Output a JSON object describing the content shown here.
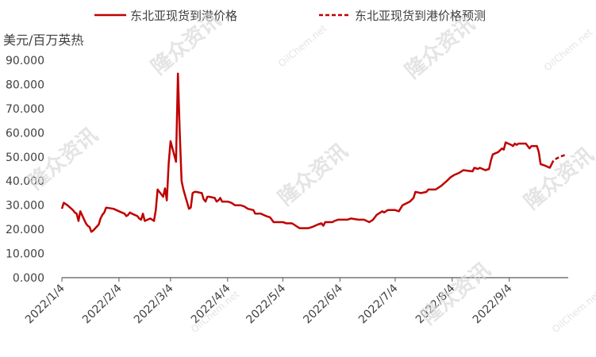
{
  "chart_data": {
    "type": "line",
    "unit_label": "美元/百万英热",
    "ylim": [
      0,
      90
    ],
    "y_ticks": [
      "0.000",
      "10.000",
      "20.000",
      "30.000",
      "40.000",
      "50.000",
      "60.000",
      "70.000",
      "80.000",
      "90.000"
    ],
    "x_tick_labels": [
      "2022/1/4",
      "2022/2/4",
      "2022/3/4",
      "2022/4/4",
      "2022/5/4",
      "2022/6/4",
      "2022/7/4",
      "2022/8/4",
      "2022/9/4"
    ],
    "x_tick_dates": [
      "2022-01-04",
      "2022-02-04",
      "2022-03-04",
      "2022-04-04",
      "2022-05-04",
      "2022-06-04",
      "2022-07-04",
      "2022-08-04",
      "2022-09-04"
    ],
    "x_range": [
      "2022-01-04",
      "2022-10-06"
    ],
    "legend_position": "top",
    "series": [
      {
        "name": "东北亚现货到港价格",
        "style": "solid",
        "color": "#C00000",
        "points": [
          [
            "2022-01-04",
            28.5
          ],
          [
            "2022-01-05",
            31.0
          ],
          [
            "2022-01-06",
            30.5
          ],
          [
            "2022-01-07",
            30.0
          ],
          [
            "2022-01-10",
            28.0
          ],
          [
            "2022-01-11",
            27.0
          ],
          [
            "2022-01-12",
            26.5
          ],
          [
            "2022-01-13",
            23.5
          ],
          [
            "2022-01-14",
            27.5
          ],
          [
            "2022-01-17",
            22.5
          ],
          [
            "2022-01-18",
            21.5
          ],
          [
            "2022-01-19",
            21.0
          ],
          [
            "2022-01-20",
            19.0
          ],
          [
            "2022-01-21",
            19.5
          ],
          [
            "2022-01-24",
            22.0
          ],
          [
            "2022-01-25",
            24.5
          ],
          [
            "2022-01-26",
            26.0
          ],
          [
            "2022-01-27",
            27.0
          ],
          [
            "2022-01-28",
            29.0
          ],
          [
            "2022-02-01",
            28.5
          ],
          [
            "2022-02-04",
            27.5
          ],
          [
            "2022-02-07",
            26.5
          ],
          [
            "2022-02-08",
            25.5
          ],
          [
            "2022-02-09",
            26.0
          ],
          [
            "2022-02-10",
            27.0
          ],
          [
            "2022-02-11",
            26.5
          ],
          [
            "2022-02-14",
            25.5
          ],
          [
            "2022-02-15",
            24.5
          ],
          [
            "2022-02-16",
            24.0
          ],
          [
            "2022-02-17",
            26.5
          ],
          [
            "2022-02-18",
            23.5
          ],
          [
            "2022-02-21",
            24.5
          ],
          [
            "2022-02-22",
            24.0
          ],
          [
            "2022-02-23",
            23.5
          ],
          [
            "2022-02-24",
            28.0
          ],
          [
            "2022-02-25",
            36.5
          ],
          [
            "2022-02-28",
            33.5
          ],
          [
            "2022-03-01",
            37.0
          ],
          [
            "2022-03-02",
            32.0
          ],
          [
            "2022-03-03",
            47.5
          ],
          [
            "2022-03-04",
            56.5
          ],
          [
            "2022-03-07",
            48.0
          ],
          [
            "2022-03-08",
            84.5
          ],
          [
            "2022-03-09",
            60.0
          ],
          [
            "2022-03-10",
            40.0
          ],
          [
            "2022-03-11",
            36.5
          ],
          [
            "2022-03-14",
            28.5
          ],
          [
            "2022-03-15",
            29.0
          ],
          [
            "2022-03-16",
            35.0
          ],
          [
            "2022-03-17",
            35.5
          ],
          [
            "2022-03-18",
            35.5
          ],
          [
            "2022-03-21",
            35.0
          ],
          [
            "2022-03-22",
            32.5
          ],
          [
            "2022-03-23",
            31.5
          ],
          [
            "2022-03-24",
            33.5
          ],
          [
            "2022-03-25",
            33.5
          ],
          [
            "2022-03-28",
            33.0
          ],
          [
            "2022-03-29",
            31.5
          ],
          [
            "2022-03-30",
            32.0
          ],
          [
            "2022-03-31",
            33.0
          ],
          [
            "2022-04-01",
            31.5
          ],
          [
            "2022-04-04",
            31.5
          ],
          [
            "2022-04-06",
            31.0
          ],
          [
            "2022-04-08",
            30.0
          ],
          [
            "2022-04-11",
            30.0
          ],
          [
            "2022-04-13",
            29.5
          ],
          [
            "2022-04-15",
            28.5
          ],
          [
            "2022-04-18",
            28.0
          ],
          [
            "2022-04-19",
            26.5
          ],
          [
            "2022-04-22",
            26.5
          ],
          [
            "2022-04-25",
            25.5
          ],
          [
            "2022-04-27",
            25.0
          ],
          [
            "2022-04-29",
            23.0
          ],
          [
            "2022-05-04",
            23.0
          ],
          [
            "2022-05-06",
            22.5
          ],
          [
            "2022-05-09",
            22.5
          ],
          [
            "2022-05-11",
            21.5
          ],
          [
            "2022-05-13",
            20.5
          ],
          [
            "2022-05-18",
            20.5
          ],
          [
            "2022-05-20",
            21.0
          ],
          [
            "2022-05-23",
            22.0
          ],
          [
            "2022-05-25",
            22.5
          ],
          [
            "2022-05-26",
            21.5
          ],
          [
            "2022-05-27",
            23.0
          ],
          [
            "2022-05-31",
            23.0
          ],
          [
            "2022-06-01",
            23.5
          ],
          [
            "2022-06-03",
            24.0
          ],
          [
            "2022-06-08",
            24.0
          ],
          [
            "2022-06-10",
            24.5
          ],
          [
            "2022-06-14",
            24.0
          ],
          [
            "2022-06-17",
            24.0
          ],
          [
            "2022-06-20",
            23.0
          ],
          [
            "2022-06-22",
            24.0
          ],
          [
            "2022-06-24",
            26.0
          ],
          [
            "2022-06-27",
            27.5
          ],
          [
            "2022-06-28",
            27.0
          ],
          [
            "2022-06-30",
            28.0
          ],
          [
            "2022-07-04",
            28.0
          ],
          [
            "2022-07-06",
            27.5
          ],
          [
            "2022-07-08",
            30.0
          ],
          [
            "2022-07-12",
            31.5
          ],
          [
            "2022-07-14",
            33.0
          ],
          [
            "2022-07-15",
            35.5
          ],
          [
            "2022-07-18",
            35.0
          ],
          [
            "2022-07-21",
            35.5
          ],
          [
            "2022-07-22",
            36.5
          ],
          [
            "2022-07-26",
            36.5
          ],
          [
            "2022-07-28",
            37.5
          ],
          [
            "2022-07-29",
            38.0
          ],
          [
            "2022-08-01",
            40.0
          ],
          [
            "2022-08-03",
            41.5
          ],
          [
            "2022-08-05",
            42.5
          ],
          [
            "2022-08-08",
            43.5
          ],
          [
            "2022-08-10",
            44.5
          ],
          [
            "2022-08-15",
            44.0
          ],
          [
            "2022-08-16",
            45.5
          ],
          [
            "2022-08-18",
            45.0
          ],
          [
            "2022-08-19",
            45.5
          ],
          [
            "2022-08-22",
            44.5
          ],
          [
            "2022-08-24",
            45.0
          ],
          [
            "2022-08-25",
            48.5
          ],
          [
            "2022-08-26",
            51.0
          ],
          [
            "2022-08-29",
            52.0
          ],
          [
            "2022-08-31",
            53.5
          ],
          [
            "2022-09-01",
            53.0
          ],
          [
            "2022-09-02",
            56.0
          ],
          [
            "2022-09-05",
            55.0
          ],
          [
            "2022-09-06",
            54.5
          ],
          [
            "2022-09-07",
            55.5
          ],
          [
            "2022-09-08",
            55.0
          ],
          [
            "2022-09-09",
            55.5
          ],
          [
            "2022-09-13",
            55.5
          ],
          [
            "2022-09-15",
            53.5
          ],
          [
            "2022-09-16",
            54.5
          ],
          [
            "2022-09-19",
            54.5
          ],
          [
            "2022-09-20",
            52.0
          ],
          [
            "2022-09-21",
            47.0
          ],
          [
            "2022-09-23",
            46.5
          ],
          [
            "2022-09-26",
            45.5
          ],
          [
            "2022-09-27",
            47.0
          ]
        ]
      },
      {
        "name": "东北亚现货到港价格预测",
        "style": "dashed",
        "color": "#C00000",
        "points": [
          [
            "2022-09-27",
            47.0
          ],
          [
            "2022-09-28",
            48.5
          ],
          [
            "2022-09-30",
            49.5
          ],
          [
            "2022-10-03",
            50.5
          ],
          [
            "2022-10-05",
            51.0
          ]
        ]
      }
    ]
  }
}
